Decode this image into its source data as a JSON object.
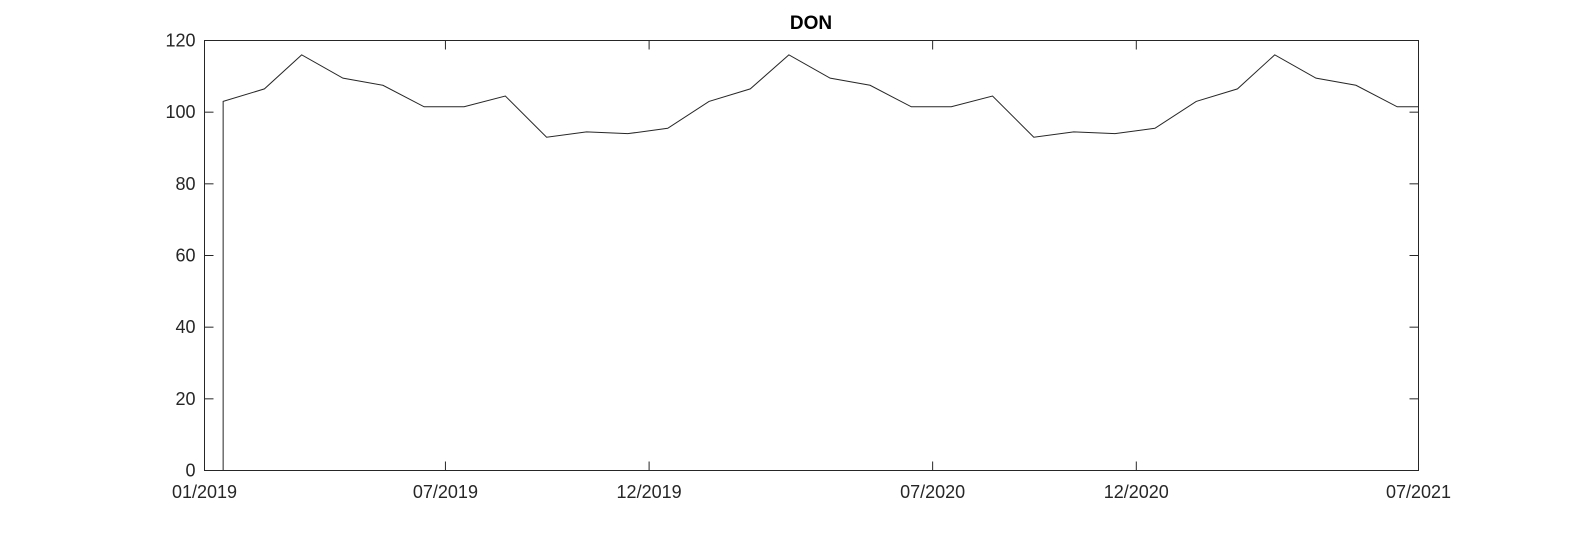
{
  "chart_data": {
    "type": "line",
    "title": "DON",
    "xlabel": "",
    "ylabel": "",
    "x_ticks": [
      "01/2019",
      "07/2019",
      "12/2019",
      "07/2020",
      "12/2020",
      "07/2021"
    ],
    "y_ticks": [
      "0",
      "20",
      "40",
      "60",
      "80",
      "100",
      "120"
    ],
    "ylim": [
      0,
      120
    ],
    "grid": false,
    "series": [
      {
        "points": [
          {
            "x": "2019-01-01",
            "y": 0
          },
          {
            "x": "2019-01-15",
            "y": 0
          },
          {
            "x": "2019-01-15",
            "y": 103
          },
          {
            "x": "2019-02-15",
            "y": 106.5
          },
          {
            "x": "2019-03-15",
            "y": 116
          },
          {
            "x": "2019-04-15",
            "y": 109.5
          },
          {
            "x": "2019-05-15",
            "y": 107.5
          },
          {
            "x": "2019-06-15",
            "y": 101.5
          },
          {
            "x": "2019-07-15",
            "y": 101.5
          },
          {
            "x": "2019-08-15",
            "y": 104.5
          },
          {
            "x": "2019-09-15",
            "y": 93
          },
          {
            "x": "2019-10-15",
            "y": 94.5
          },
          {
            "x": "2019-11-15",
            "y": 94
          },
          {
            "x": "2019-12-15",
            "y": 95.5
          },
          {
            "x": "2020-01-15",
            "y": 103
          },
          {
            "x": "2020-02-15",
            "y": 106.5
          },
          {
            "x": "2020-03-15",
            "y": 116
          },
          {
            "x": "2020-04-15",
            "y": 109.5
          },
          {
            "x": "2020-05-15",
            "y": 107.5
          },
          {
            "x": "2020-06-15",
            "y": 101.5
          },
          {
            "x": "2020-07-15",
            "y": 101.5
          },
          {
            "x": "2020-08-15",
            "y": 104.5
          },
          {
            "x": "2020-09-15",
            "y": 93
          },
          {
            "x": "2020-10-15",
            "y": 94.5
          },
          {
            "x": "2020-11-15",
            "y": 94
          },
          {
            "x": "2020-12-15",
            "y": 95.5
          },
          {
            "x": "2021-01-15",
            "y": 103
          },
          {
            "x": "2021-02-15",
            "y": 106.5
          },
          {
            "x": "2021-03-15",
            "y": 116
          },
          {
            "x": "2021-04-15",
            "y": 109.5
          },
          {
            "x": "2021-05-15",
            "y": 107.5
          },
          {
            "x": "2021-06-15",
            "y": 101.5
          },
          {
            "x": "2021-07-01",
            "y": 101.5
          }
        ]
      }
    ]
  }
}
